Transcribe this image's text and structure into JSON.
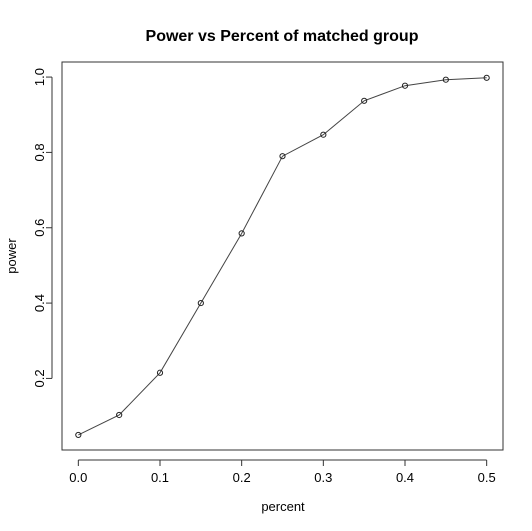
{
  "chart_data": {
    "type": "line",
    "title": "Power vs Percent of matched group",
    "xlabel": "percent",
    "ylabel": "power",
    "x": [
      0.0,
      0.05,
      0.1,
      0.15,
      0.2,
      0.25,
      0.3,
      0.35,
      0.4,
      0.45,
      0.5
    ],
    "series": [
      {
        "values": [
          0.05,
          0.103,
          0.215,
          0.4,
          0.585,
          0.79,
          0.847,
          0.937,
          0.977,
          0.993,
          0.998
        ]
      }
    ],
    "xlim": [
      -0.02,
      0.52
    ],
    "ylim": [
      0.01,
      1.04
    ],
    "xticks": [
      "0.0",
      "0.1",
      "0.2",
      "0.3",
      "0.4",
      "0.5"
    ],
    "yticks": [
      "0.2",
      "0.4",
      "0.6",
      "0.8",
      "1.0"
    ],
    "grid": false,
    "marker": "open-circle",
    "color": "#444444"
  }
}
